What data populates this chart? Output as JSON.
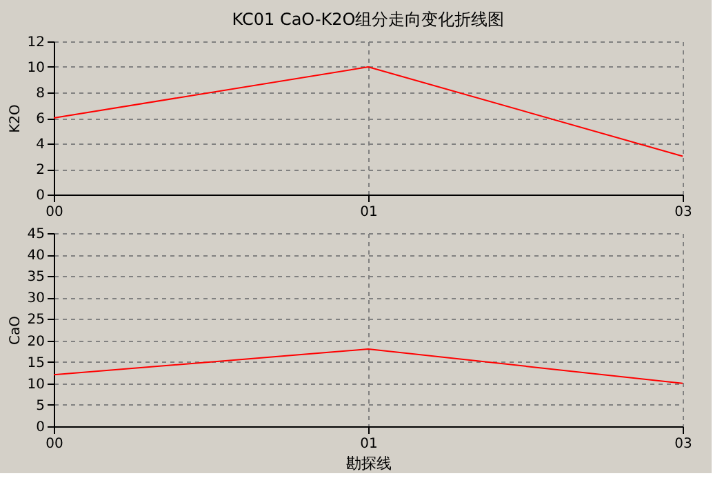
{
  "chart_data": [
    {
      "type": "line",
      "title": "KC01 CaO-K2O组分走向变化折线图",
      "ylabel": "K2O",
      "categories": [
        "00",
        "01",
        "03"
      ],
      "series": [
        {
          "color": "#ff0000",
          "values": [
            6,
            10,
            3
          ]
        }
      ],
      "ylim": [
        0,
        12
      ],
      "yticks": [
        0,
        2,
        4,
        6,
        8,
        10,
        12
      ],
      "grid": true,
      "marker": "none",
      "line_style": "solid"
    },
    {
      "type": "line",
      "xlabel": "勘探线",
      "ylabel": "CaO",
      "categories": [
        "00",
        "01",
        "03"
      ],
      "series": [
        {
          "color": "#ff0000",
          "values": [
            12,
            18,
            10
          ]
        }
      ],
      "ylim": [
        0,
        45
      ],
      "yticks": [
        0,
        5,
        10,
        15,
        20,
        25,
        30,
        35,
        40,
        45
      ],
      "grid": true,
      "marker": "none",
      "line_style": "solid"
    }
  ]
}
